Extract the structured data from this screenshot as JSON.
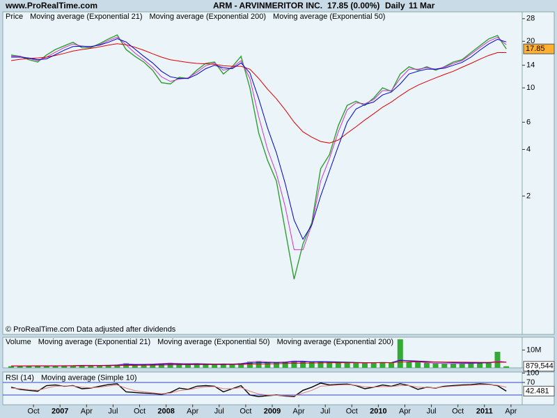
{
  "header": {
    "site": "www.ProRealTime.com",
    "symbol": "ARM - ARVINMERITOR INC.",
    "quote": "17.85 (0.00%)",
    "period": "Daily",
    "date": "11 Mar"
  },
  "chart_data": [
    {
      "type": "line",
      "yscale": "log",
      "ylim": [
        0.255,
        31
      ],
      "yticks": [
        28,
        20,
        14,
        10,
        6,
        4,
        2
      ],
      "box_color": "#ffb030",
      "note": "© ProRealTime.com Data adjusted after dividends",
      "x": [
        "2006-07",
        "2006-08",
        "2006-09",
        "2006-10",
        "2006-11",
        "2006-12",
        "2007-01",
        "2007-02",
        "2007-03",
        "2007-04",
        "2007-05",
        "2007-06",
        "2007-07",
        "2007-08",
        "2007-09",
        "2007-10",
        "2007-11",
        "2007-12",
        "2008-01",
        "2008-02",
        "2008-03",
        "2008-04",
        "2008-05",
        "2008-06",
        "2008-07",
        "2008-08",
        "2008-09",
        "2008-10",
        "2008-11",
        "2008-12",
        "2009-01",
        "2009-02",
        "2009-03",
        "2009-04",
        "2009-05",
        "2009-06",
        "2009-07",
        "2009-08",
        "2009-09",
        "2009-10",
        "2009-11",
        "2009-12",
        "2010-01",
        "2010-02",
        "2010-03",
        "2010-04",
        "2010-05",
        "2010-06",
        "2010-07",
        "2010-08",
        "2010-09",
        "2010-10",
        "2010-11",
        "2010-12",
        "2011-01",
        "2011-02",
        "2011-03"
      ],
      "series": [
        {
          "name": "Price",
          "color": "#2f9e2f",
          "legend_color": "#000000",
          "values": [
            16.3,
            16.0,
            15.2,
            14.7,
            16.3,
            17.7,
            18.7,
            19.7,
            18.2,
            18.2,
            19.3,
            20.7,
            22,
            17.7,
            16.0,
            14.7,
            13.0,
            10.8,
            10.6,
            11.7,
            11.5,
            13.0,
            14.4,
            14.7,
            12.3,
            13.7,
            16.0,
            10.0,
            5.1,
            3.4,
            2.5,
            1.2,
            0.58,
            0.98,
            1.34,
            3.0,
            3.7,
            5.7,
            7.7,
            8.2,
            7.7,
            8.6,
            10.0,
            9.5,
            12.3,
            13.7,
            13.0,
            13.7,
            13.0,
            13.7,
            14.7,
            15.2,
            16.9,
            18.7,
            20.7,
            21.8,
            17.85
          ]
        },
        {
          "name": "Moving average (Exponential 21)",
          "color": "#cc33cc",
          "values": [
            16.0,
            16.0,
            15.5,
            15.0,
            15.8,
            17.0,
            18.2,
            19.2,
            18.6,
            18.4,
            19.0,
            20.2,
            21.3,
            19.0,
            16.8,
            15.2,
            13.6,
            11.8,
            11.0,
            11.4,
            11.6,
            12.6,
            13.9,
            14.5,
            13.0,
            13.5,
            15.0,
            11.5,
            6.5,
            4.0,
            2.8,
            1.7,
            0.9,
            0.9,
            1.3,
            2.5,
            3.5,
            5.2,
            7.2,
            8.0,
            7.9,
            8.4,
            9.6,
            9.6,
            11.5,
            13.2,
            13.2,
            13.5,
            13.2,
            13.6,
            14.4,
            15.0,
            16.5,
            18.2,
            20.0,
            21.2,
            19.0
          ]
        },
        {
          "name": "Moving average (Exponential 200)",
          "color": "#dd0000",
          "values": [
            15.0,
            15.3,
            15.5,
            15.6,
            15.8,
            16.2,
            16.7,
            17.3,
            17.7,
            18.0,
            18.4,
            18.9,
            19.3,
            19.0,
            18.3,
            17.5,
            16.6,
            15.8,
            15.2,
            14.9,
            14.6,
            14.4,
            14.3,
            14.2,
            13.9,
            13.8,
            13.8,
            13.2,
            11.5,
            9.8,
            8.5,
            7.2,
            6.0,
            5.2,
            4.8,
            4.5,
            4.4,
            4.6,
            5.1,
            5.6,
            6.2,
            6.8,
            7.5,
            8.1,
            8.9,
            9.7,
            10.4,
            11.0,
            11.6,
            12.2,
            12.8,
            13.6,
            14.4,
            15.3,
            16.2,
            16.9,
            16.9
          ]
        },
        {
          "name": "Moving average (Exponential 50)",
          "color": "#0000cc",
          "values": [
            15.8,
            15.8,
            15.6,
            15.2,
            15.4,
            16.4,
            17.5,
            18.5,
            18.6,
            18.5,
            18.9,
            19.7,
            20.8,
            19.8,
            17.8,
            16.0,
            14.5,
            12.8,
            11.8,
            11.5,
            11.5,
            12.2,
            13.3,
            14.0,
            13.5,
            13.3,
            14.5,
            12.5,
            8.5,
            5.5,
            3.8,
            2.4,
            1.4,
            1.05,
            1.3,
            2.0,
            2.9,
            4.2,
            6.0,
            7.3,
            7.8,
            8.1,
            9.0,
            9.4,
            10.6,
            12.3,
            12.8,
            13.2,
            13.2,
            13.4,
            14.0,
            14.6,
            15.8,
            17.5,
            19.2,
            20.6,
            19.8
          ]
        }
      ]
    },
    {
      "type": "bar",
      "ylim": [
        0,
        17200000
      ],
      "yticks": [
        {
          "value": 10000000,
          "label": "10M"
        }
      ],
      "box_color": "#ffffff",
      "x": [
        "2006-07",
        "2006-08",
        "2006-09",
        "2006-10",
        "2006-11",
        "2006-12",
        "2007-01",
        "2007-02",
        "2007-03",
        "2007-04",
        "2007-05",
        "2007-06",
        "2007-07",
        "2007-08",
        "2007-09",
        "2007-10",
        "2007-11",
        "2007-12",
        "2008-01",
        "2008-02",
        "2008-03",
        "2008-04",
        "2008-05",
        "2008-06",
        "2008-07",
        "2008-08",
        "2008-09",
        "2008-10",
        "2008-11",
        "2008-12",
        "2009-01",
        "2009-02",
        "2009-03",
        "2009-04",
        "2009-05",
        "2009-06",
        "2009-07",
        "2009-08",
        "2009-09",
        "2009-10",
        "2009-11",
        "2009-12",
        "2010-01",
        "2010-02",
        "2010-03",
        "2010-04",
        "2010-05",
        "2010-06",
        "2010-07",
        "2010-08",
        "2010-09",
        "2010-10",
        "2010-11",
        "2010-12",
        "2011-01",
        "2011-02",
        "2011-03"
      ],
      "series": [
        {
          "name": "Volume",
          "type": "bar",
          "color": "#33aa33",
          "values": [
            900000,
            1000000,
            1100000,
            1200000,
            1000000,
            1100000,
            1300000,
            1200000,
            1500000,
            1400000,
            1300000,
            1600000,
            1800000,
            2600000,
            1900000,
            2000000,
            2200000,
            2500000,
            2800000,
            2300000,
            2100000,
            2400000,
            1900000,
            1800000,
            2300000,
            2000000,
            2600000,
            3500000,
            3800000,
            3200000,
            3000000,
            3400000,
            4000000,
            3800000,
            3300000,
            3600000,
            3200000,
            3000000,
            2900000,
            2700000,
            2600000,
            2800000,
            3100000,
            2900000,
            16000000,
            3500000,
            3300000,
            2800000,
            2500000,
            2300000,
            2400000,
            2300000,
            2600000,
            2800000,
            3000000,
            9000000,
            879544
          ],
          "value_labels": [
            null,
            null,
            null,
            null,
            null,
            null,
            null,
            null,
            null,
            null,
            null,
            null,
            null,
            null,
            null,
            null,
            null,
            null,
            null,
            null,
            null,
            null,
            null,
            null,
            null,
            null,
            null,
            null,
            null,
            null,
            null,
            null,
            null,
            null,
            null,
            null,
            null,
            null,
            null,
            null,
            null,
            null,
            null,
            null,
            null,
            null,
            null,
            null,
            null,
            null,
            null,
            null,
            null,
            null,
            null,
            null,
            "879,544"
          ]
        },
        {
          "name": "Moving average (Exponential 21)",
          "type": "line",
          "color": "#cc33cc",
          "values": [
            1000000,
            1000000,
            1050000,
            1150000,
            1100000,
            1100000,
            1200000,
            1250000,
            1400000,
            1400000,
            1350000,
            1500000,
            1700000,
            2300000,
            2000000,
            2000000,
            2100000,
            2400000,
            2600000,
            2400000,
            2200000,
            2300000,
            2000000,
            1900000,
            2200000,
            2100000,
            2400000,
            3200000,
            3600000,
            3300000,
            3100000,
            3300000,
            3800000,
            3800000,
            3400000,
            3500000,
            3300000,
            3100000,
            2900000,
            2800000,
            2700000,
            2800000,
            3000000,
            2900000,
            4500000,
            3800000,
            3400000,
            2900000,
            2600000,
            2400000,
            2400000,
            2400000,
            2500000,
            2700000,
            2900000,
            3800000,
            3200000
          ]
        },
        {
          "name": "Moving average (Exponential 50)",
          "type": "line",
          "color": "#0000cc",
          "values": [
            1000000,
            1000000,
            1020000,
            1080000,
            1080000,
            1090000,
            1130000,
            1160000,
            1240000,
            1290000,
            1300000,
            1360000,
            1460000,
            1720000,
            1760000,
            1820000,
            1920000,
            2080000,
            2260000,
            2280000,
            2250000,
            2290000,
            2200000,
            2120000,
            2160000,
            2130000,
            2250000,
            2600000,
            2920000,
            3000000,
            3000000,
            3100000,
            3350000,
            3470000,
            3420000,
            3460000,
            3400000,
            3300000,
            3180000,
            3060000,
            2950000,
            2920000,
            2970000,
            2950000,
            4200000,
            4000000,
            3800000,
            3550000,
            3300000,
            3080000,
            2920000,
            2780000,
            2730000,
            2750000,
            2820000,
            3300000,
            3150000
          ]
        },
        {
          "name": "Moving average (Exponential 200)",
          "type": "line",
          "color": "#dd0000",
          "values": [
            1000000,
            1010000,
            1020000,
            1040000,
            1050000,
            1060000,
            1080000,
            1100000,
            1130000,
            1160000,
            1180000,
            1210000,
            1260000,
            1350000,
            1400000,
            1450000,
            1510000,
            1580000,
            1660000,
            1710000,
            1750000,
            1800000,
            1830000,
            1850000,
            1880000,
            1900000,
            1940000,
            2040000,
            2160000,
            2250000,
            2330000,
            2420000,
            2540000,
            2640000,
            2710000,
            2780000,
            2830000,
            2860000,
            2880000,
            2890000,
            2890000,
            2890000,
            2910000,
            2910000,
            3300000,
            3320000,
            3320000,
            3300000,
            3270000,
            3230000,
            3190000,
            3150000,
            3120000,
            3100000,
            3090000,
            3180000,
            3140000
          ]
        }
      ]
    },
    {
      "type": "line",
      "ylim": [
        0,
        100
      ],
      "yticks": [
        70,
        100
      ],
      "levels": [
        70,
        30
      ],
      "level_color": "#3344cc",
      "box_color": "#ffffff",
      "xticks": [
        {
          "value": "2006-10",
          "label": "Oct"
        },
        {
          "value": "2007-01",
          "label": "2007"
        },
        {
          "value": "2007-04",
          "label": "Apr"
        },
        {
          "value": "2007-07",
          "label": "Jul"
        },
        {
          "value": "2007-10",
          "label": "Oct"
        },
        {
          "value": "2008-01",
          "label": "2008"
        },
        {
          "value": "2008-04",
          "label": "Apr"
        },
        {
          "value": "2008-07",
          "label": "Jul"
        },
        {
          "value": "2008-10",
          "label": "Oct"
        },
        {
          "value": "2009-01",
          "label": "2009"
        },
        {
          "value": "2009-04",
          "label": "Apr"
        },
        {
          "value": "2009-07",
          "label": "Jul"
        },
        {
          "value": "2009-10",
          "label": "Oct"
        },
        {
          "value": "2010-01",
          "label": "2010"
        },
        {
          "value": "2010-04",
          "label": "Apr"
        },
        {
          "value": "2010-07",
          "label": "Jul"
        },
        {
          "value": "2010-10",
          "label": "Oct"
        },
        {
          "value": "2011-01",
          "label": "2011"
        },
        {
          "value": "2011-04",
          "label": "Apr"
        }
      ],
      "x": [
        "2006-07",
        "2006-08",
        "2006-09",
        "2006-10",
        "2006-11",
        "2006-12",
        "2007-01",
        "2007-02",
        "2007-03",
        "2007-04",
        "2007-05",
        "2007-06",
        "2007-07",
        "2007-08",
        "2007-09",
        "2007-10",
        "2007-11",
        "2007-12",
        "2008-01",
        "2008-02",
        "2008-03",
        "2008-04",
        "2008-05",
        "2008-06",
        "2008-07",
        "2008-08",
        "2008-09",
        "2008-10",
        "2008-11",
        "2008-12",
        "2009-01",
        "2009-02",
        "2009-03",
        "2009-04",
        "2009-05",
        "2009-06",
        "2009-07",
        "2009-08",
        "2009-09",
        "2009-10",
        "2009-11",
        "2009-12",
        "2010-01",
        "2010-02",
        "2010-03",
        "2010-04",
        "2010-05",
        "2010-06",
        "2010-07",
        "2010-08",
        "2010-09",
        "2010-10",
        "2010-11",
        "2010-12",
        "2011-01",
        "2011-02",
        "2011-03"
      ],
      "series": [
        {
          "name": "RSI (14)",
          "color": "#000000",
          "values": [
            55,
            48,
            45,
            42,
            60,
            62,
            58,
            60,
            50,
            52,
            58,
            63,
            66,
            40,
            38,
            36,
            35,
            32,
            38,
            52,
            48,
            58,
            60,
            58,
            40,
            50,
            60,
            30,
            25,
            28,
            30,
            27,
            25,
            45,
            55,
            68,
            62,
            64,
            65,
            60,
            50,
            55,
            62,
            58,
            66,
            60,
            48,
            55,
            52,
            58,
            60,
            62,
            63,
            66,
            64,
            60,
            42.481
          ]
        },
        {
          "name": "Moving average (Simple 10)",
          "color": "#e07a7a",
          "values": [
            52,
            50,
            47,
            45,
            52,
            58,
            59,
            59,
            55,
            53,
            55,
            59,
            62,
            52,
            44,
            40,
            37,
            34,
            36,
            44,
            47,
            52,
            56,
            57,
            50,
            50,
            54,
            42,
            33,
            30,
            29,
            28,
            27,
            36,
            45,
            58,
            60,
            62,
            63,
            61,
            56,
            55,
            57,
            57,
            60,
            60,
            55,
            54,
            53,
            56,
            58,
            60,
            61,
            63,
            63,
            61,
            55
          ]
        }
      ]
    }
  ]
}
